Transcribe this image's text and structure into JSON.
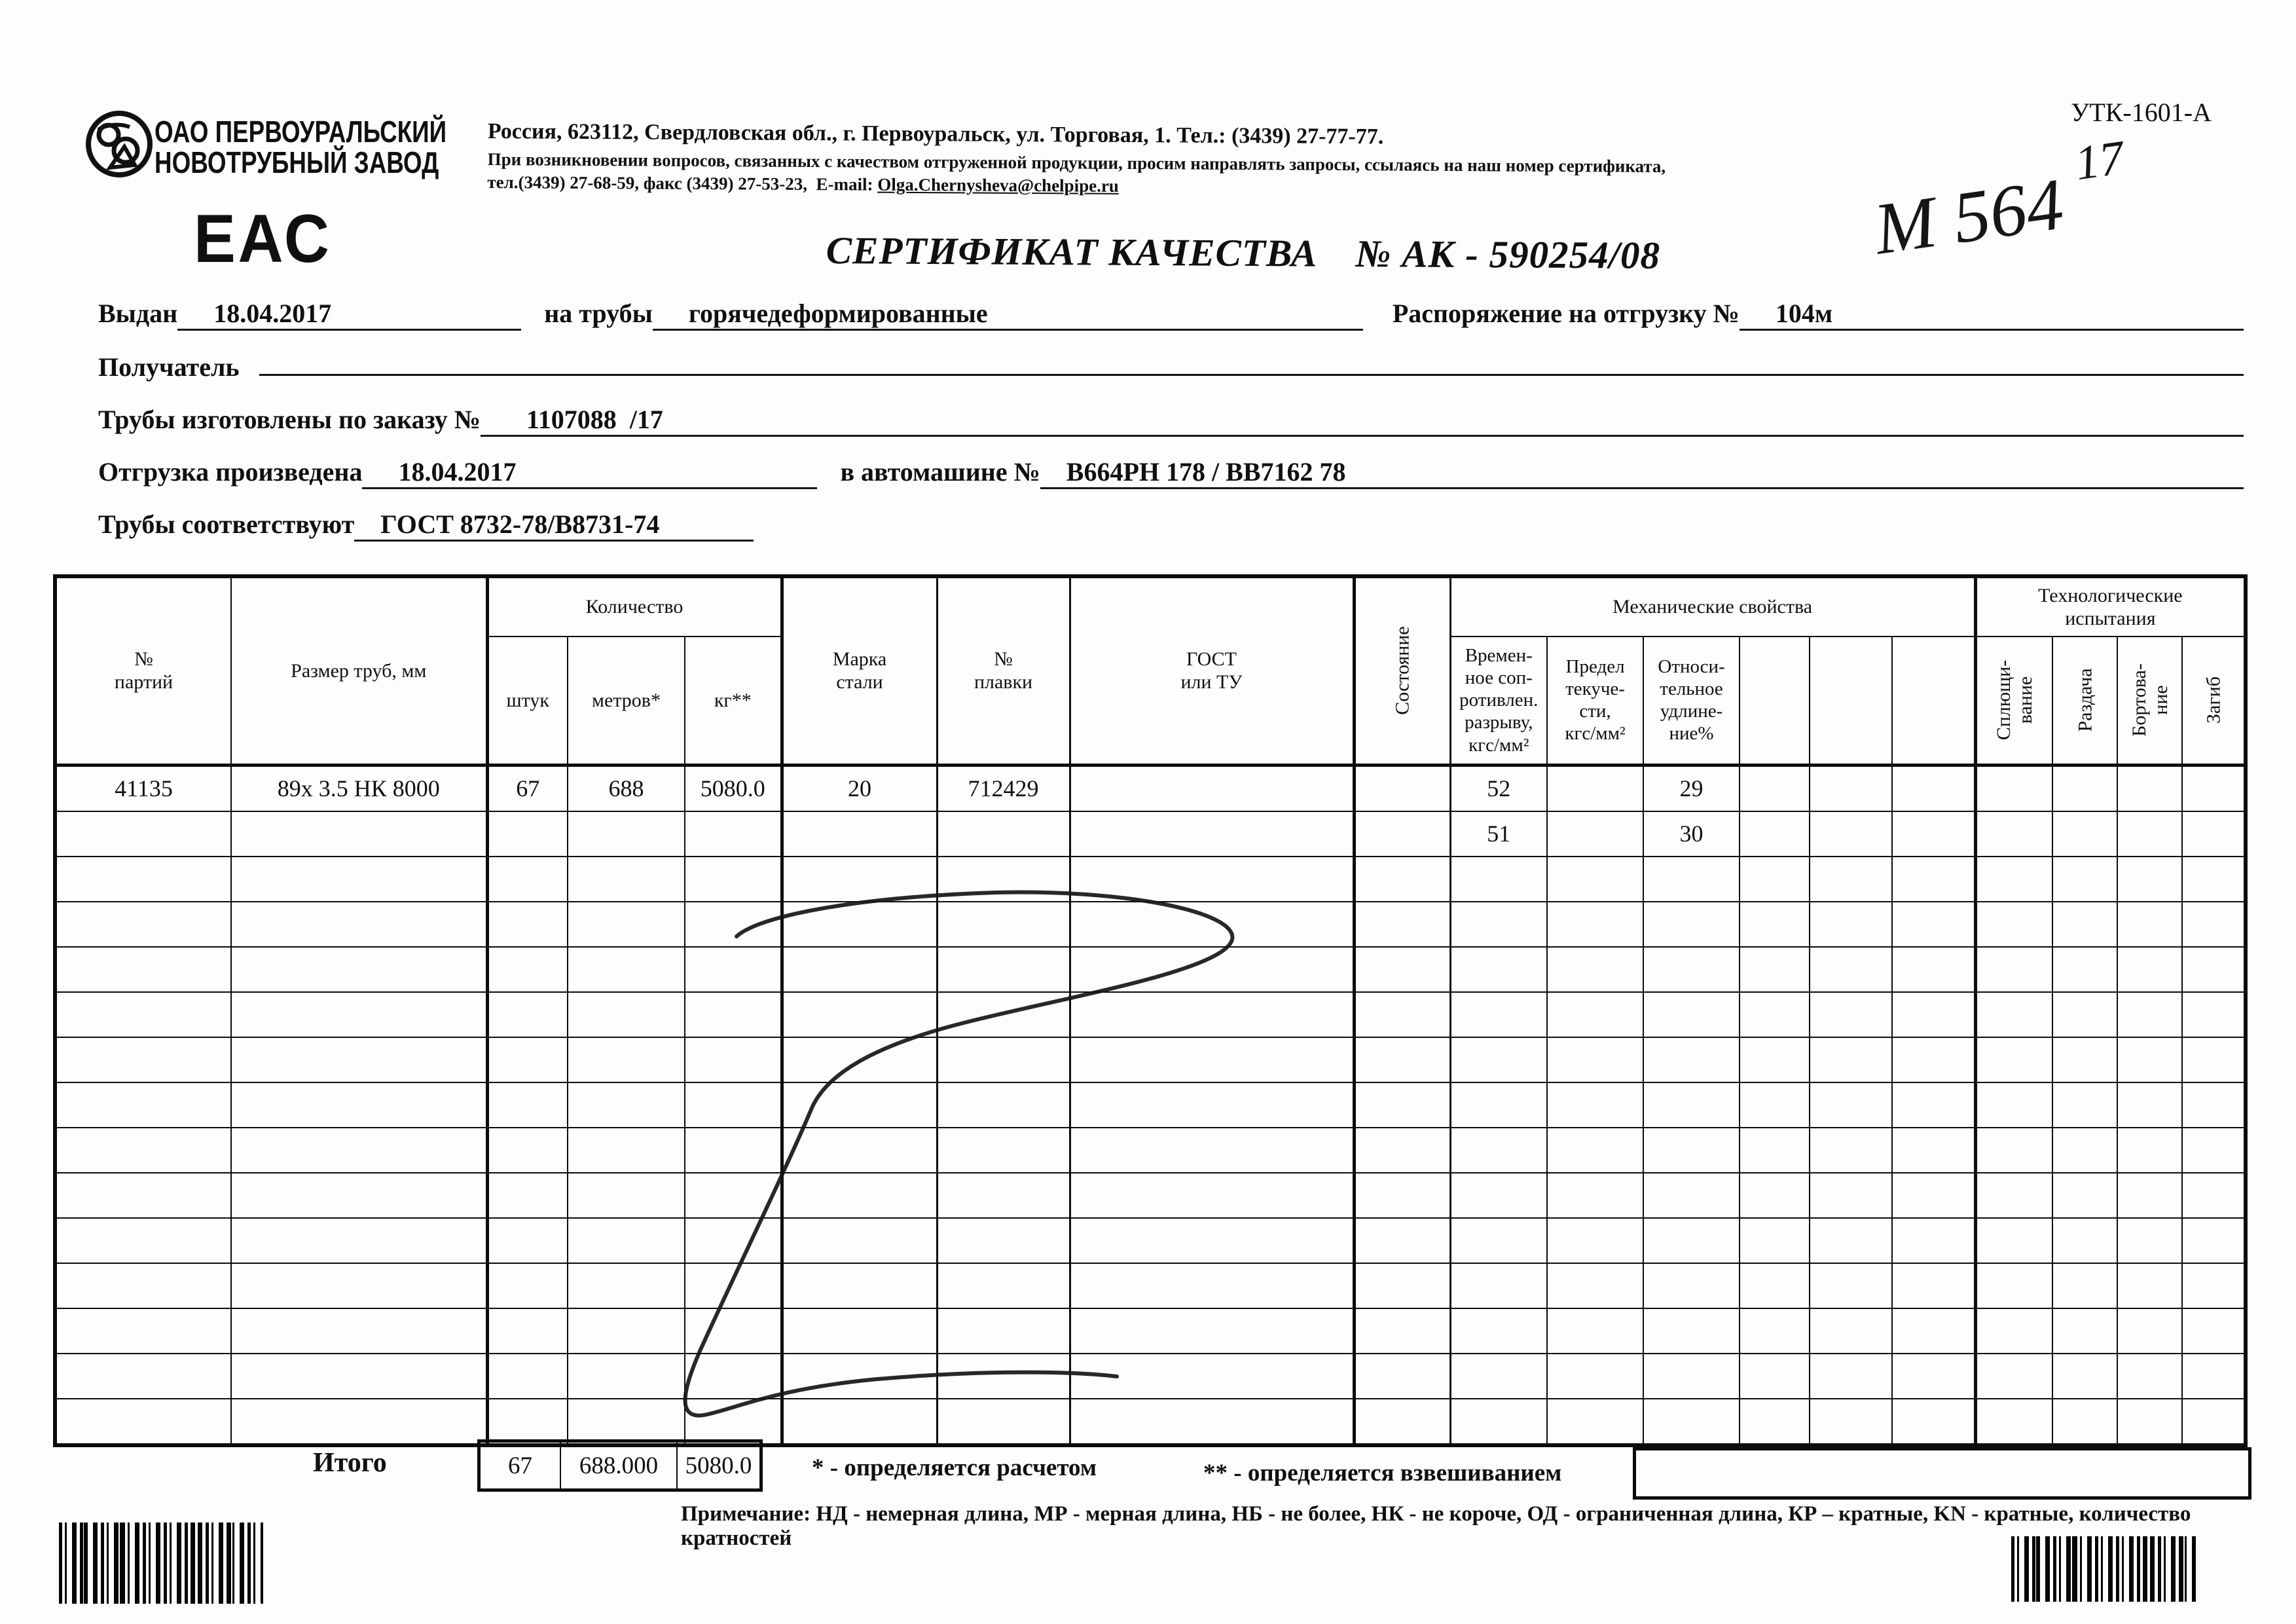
{
  "document": {
    "form_code": "УТК-1601-А",
    "handwritten_number": "М  564",
    "handwritten_sup": "17"
  },
  "company": {
    "name": "ОАО ПЕРВОУРАЛЬСКИЙ\nНОВОТРУБНЫЙ ЗАВОД",
    "eac_mark": "ЕАС",
    "address_line": "Россия, 623112, Свердловская обл., г. Первоуральск, ул. Торговая, 1. Тел.: (3439) 27-77-77.",
    "note_line": "При возникновении вопросов, связанных с качеством отгруженной продукции, просим направлять запросы, ссылаясь на наш номер сертификата,",
    "contacts_prefix": "тел.(3439) 27-68-59, факс (3439) 27-53-23,  E-mail: ",
    "email": "Olga.Chernysheva@chelpipe.ru"
  },
  "title": {
    "label": "СЕРТИФИКАТ КАЧЕСТВА",
    "number": "№  АК - 590254/08"
  },
  "fields": {
    "issued_label": "Выдан",
    "issued_value": "18.04.2017",
    "pipes_label": "на трубы",
    "pipes_value": "горячедеформированные",
    "ship_order_label": "Распоряжение на отгрузку №",
    "ship_order_value": "104м",
    "receiver_label": "Получатель",
    "receiver_value": "",
    "made_order_label": "Трубы изготовлены по заказу №",
    "made_order_value": "1107088  /17",
    "shipped_label": "Отгрузка произведена",
    "shipped_value": "18.04.2017",
    "truck_label": "в автомашине №",
    "truck_value": "В664РН 178 / ВВ7162 78",
    "conform_label": "Трубы соответствуют",
    "conform_value": "ГОСТ 8732-78/В8731-74"
  },
  "table": {
    "headers": {
      "party": "№\nпартий",
      "size": "Размер труб, мм",
      "qty_group": "Количество",
      "qty_pcs": "штук",
      "qty_m": "метров*",
      "qty_kg": "кг**",
      "steel": "Марка\nстали",
      "melt": "№\nплавки",
      "gost": "ГОСТ\nили ТУ",
      "state": "Состояние",
      "mech_group": "Механические свойства",
      "mech_tensile": "Времен-\nное соп-\nротивлен.\nразрыву,\nкгс/мм²",
      "mech_yield": "Предел\nтекуче-\nсти,\nкгс/мм²",
      "mech_elong": "Относи-\nтельное\nудлине-\nние%",
      "tech_group": "Технологические\nиспытания",
      "tech_flatten": "Сплющи-\nвание",
      "tech_expand": "Раздача",
      "tech_flange": "Бортова-\nние",
      "tech_bend": "Загиб"
    },
    "rows": [
      [
        "41135",
        "89х 3.5 НК 8000",
        "67",
        "688",
        "5080.0",
        "20",
        "712429",
        "",
        "",
        "52",
        "",
        "29",
        "",
        "",
        "",
        "",
        "",
        "",
        ""
      ],
      [
        "",
        "",
        "",
        "",
        "",
        "",
        "",
        "",
        "",
        "51",
        "",
        "30",
        "",
        "",
        "",
        "",
        "",
        "",
        ""
      ]
    ],
    "empty_row_count": 13,
    "totals": {
      "label": "Итого",
      "pcs": "67",
      "m": "688.000",
      "kg": "5080.0"
    }
  },
  "footnotes": {
    "star": "* - определяется расчетом",
    "double_star": "** - определяется взвешиванием",
    "note": "Примечание: НД - немерная длина, МР - мерная длина, НБ - не более, НК - не короче, ОД - ограниченная длина, КР – кратные, KN - кратные, количество кратностей"
  }
}
